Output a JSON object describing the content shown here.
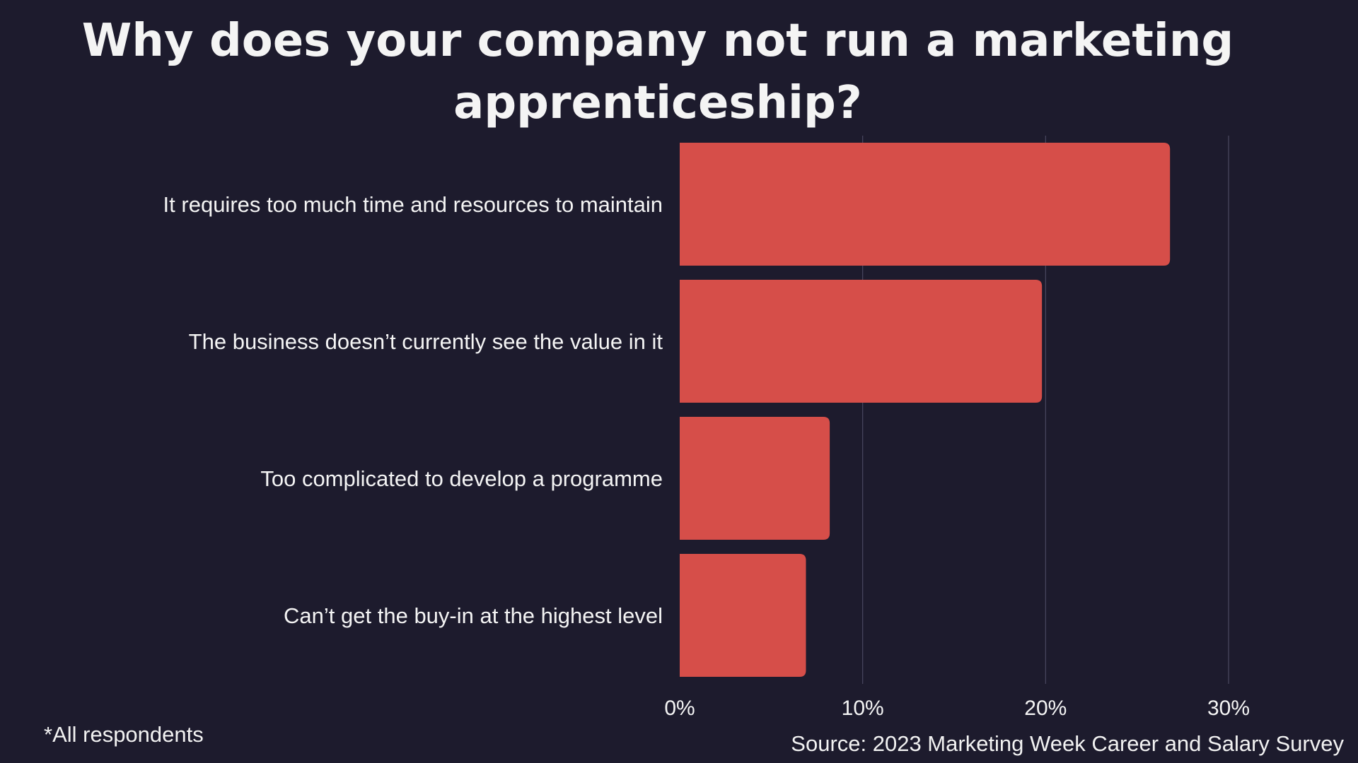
{
  "title": "Why does your company not run a marketing apprenticeship?",
  "footnote": "*All respondents",
  "source": "Source: 2023 Marketing Week Career and Salary Survey",
  "colors": {
    "background": "#1d1b2d",
    "bar": "#d64e49",
    "gridline": "#4a4860",
    "text": "#f4f4f4"
  },
  "chart_data": {
    "type": "bar",
    "orientation": "horizontal",
    "title": "Why does your company not run a marketing apprenticeship?",
    "categories": [
      "It requires too much time and resources to maintain",
      "The business doesn’t currently see the value in it",
      "Too complicated to develop a programme",
      "Can’t get the buy-in at the highest level"
    ],
    "values": [
      26.8,
      19.8,
      8.2,
      6.9
    ],
    "unit": "%",
    "xlim": [
      0,
      30
    ],
    "xticks": [
      0,
      10,
      20,
      30
    ],
    "xtick_labels": [
      "0%",
      "10%",
      "20%",
      "30%"
    ],
    "xlabel": "",
    "ylabel": "",
    "grid": true,
    "legend": "none"
  }
}
